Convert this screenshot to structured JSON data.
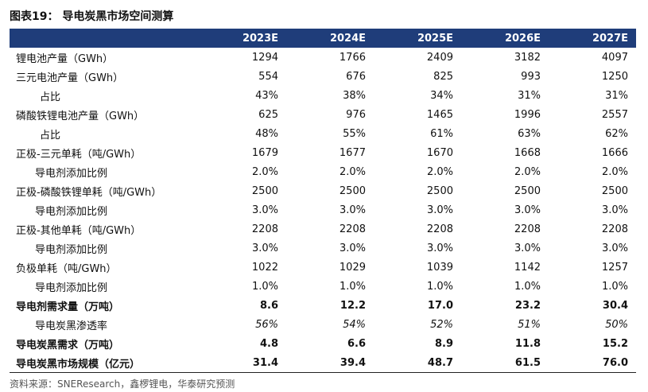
{
  "title": "图表19： 导电炭黑市场空间测算",
  "table": {
    "header": [
      "2023E",
      "2024E",
      "2025E",
      "2026E",
      "2027E"
    ],
    "rows": [
      [
        "锂电池产量（GWh）",
        "1294",
        "1766",
        "2409",
        "3182",
        "4097"
      ],
      [
        "三元电池产量（GWh）",
        "554",
        "676",
        "825",
        "993",
        "1250"
      ],
      [
        "占比",
        "43%",
        "38%",
        "34%",
        "31%",
        "31%"
      ],
      [
        "磷酸铁锂电池产量（GWh）",
        "625",
        "976",
        "1465",
        "1996",
        "2557"
      ],
      [
        "占比",
        "48%",
        "55%",
        "61%",
        "63%",
        "62%"
      ],
      [
        "正极-三元单耗（吨/GWh）",
        "1679",
        "1677",
        "1670",
        "1668",
        "1666"
      ],
      [
        "导电剂添加比例",
        "2.0%",
        "2.0%",
        "2.0%",
        "2.0%",
        "2.0%"
      ],
      [
        "正极-磷酸铁锂单耗（吨/GWh）",
        "2500",
        "2500",
        "2500",
        "2500",
        "2500"
      ],
      [
        "导电剂添加比例",
        "3.0%",
        "3.0%",
        "3.0%",
        "3.0%",
        "3.0%"
      ],
      [
        "正极-其他单耗（吨/GWh）",
        "2208",
        "2208",
        "2208",
        "2208",
        "2208"
      ],
      [
        "导电剂添加比例",
        "3.0%",
        "3.0%",
        "3.0%",
        "3.0%",
        "3.0%"
      ],
      [
        "负极单耗（吨/GWh）",
        "1022",
        "1029",
        "1039",
        "1142",
        "1257"
      ],
      [
        "导电剂添加比例",
        "1.0%",
        "1.0%",
        "1.0%",
        "1.0%",
        "1.0%"
      ],
      [
        "导电剂需求量（万吨）",
        "8.6",
        "12.2",
        "17.0",
        "23.2",
        "30.4"
      ],
      [
        "导电炭黑渗透率",
        "56%",
        "54%",
        "52%",
        "51%",
        "50%"
      ],
      [
        "导电炭黑需求（万吨）",
        "4.8",
        "6.6",
        "8.9",
        "11.8",
        "15.2"
      ],
      [
        "导电炭黑市场规模（亿元）",
        "31.4",
        "39.4",
        "48.7",
        "61.5",
        "76.0"
      ]
    ]
  },
  "source": "资料来源：SNEResearch，鑫椤锂电，华泰研究预测"
}
